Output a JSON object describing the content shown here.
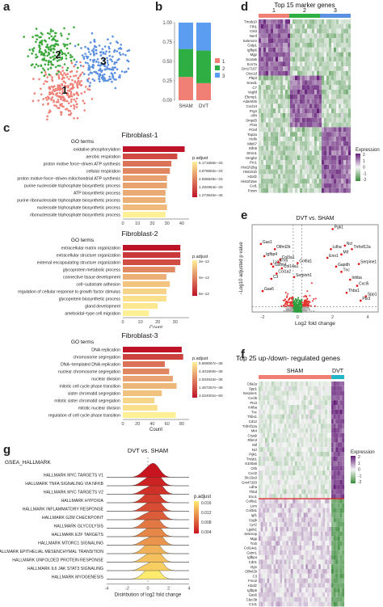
{
  "panel_labels": {
    "a": "a",
    "b": "b",
    "c": "c",
    "d": "d",
    "e": "e",
    "f": "f",
    "g": "g"
  },
  "chart_data": [
    {
      "id": "a",
      "type": "scatter",
      "title": "",
      "cluster_labels": [
        "1",
        "2",
        "3"
      ],
      "colors": [
        "#f07f76",
        "#3aa83a",
        "#5b8fe0"
      ]
    },
    {
      "id": "b",
      "type": "bar",
      "stacked": true,
      "categories": [
        "SHAM",
        "DVT"
      ],
      "series": [
        {
          "name": "1",
          "values": [
            0.3,
            0.22
          ],
          "color": "#f07f76"
        },
        {
          "name": "2",
          "values": [
            0.36,
            0.42
          ],
          "color": "#2fae43"
        },
        {
          "name": "3",
          "values": [
            0.34,
            0.36
          ],
          "color": "#5b9df0"
        }
      ],
      "ylim": [
        0,
        1
      ],
      "yticks": [
        "0.00",
        "0.25",
        "0.50",
        "0.75",
        "1.00"
      ]
    },
    {
      "id": "c1",
      "type": "bar",
      "orientation": "horizontal",
      "title": "Fibroblast-1",
      "axis_header": "GO terms",
      "xlabel": "Count",
      "xticks": [
        "0",
        "10",
        "20",
        "30",
        "40"
      ],
      "xlim": [
        0,
        45
      ],
      "categories": [
        "oxidative phosphorylation",
        "aerobic respiration",
        "proton motive force−driven ATP synthesis",
        "cellular respiration",
        "proton motive force−driven mitochondrial ATP synthesis",
        "purine nucleoside triphosphate biosynthetic process",
        "ATP biosynthetic process",
        "purine ribonucleoside triphosphate biosynthetic process",
        "nucleoside triphosphate biosynthetic process",
        "ribonucleoside triphosphate biosynthetic process"
      ],
      "values": [
        42,
        37,
        33,
        32,
        30,
        30,
        29,
        29,
        30,
        29
      ],
      "padj": [
        1.27e-45,
        1.2e-42,
        2.5e-40,
        3e-39,
        6.5e-38,
        1e-37,
        2.5e-37,
        5e-37,
        2e-36,
        1.9e-33
      ],
      "legend_title": "p.adjust",
      "legend_labels": [
        "5.171656e−33",
        "3.878692e−33",
        "2.585828e−33",
        "1.292964e−33",
        "1.273640e−45"
      ]
    },
    {
      "id": "c2",
      "type": "bar",
      "orientation": "horizontal",
      "title": "Fibroblast-2",
      "axis_header": "GO terms",
      "xlabel": "Count",
      "xticks": [
        "0",
        "10",
        "20",
        "30"
      ],
      "xlim": [
        0,
        38
      ],
      "categories": [
        "extracellular matrix organization",
        "extracellular structure organization",
        "external encapsulating structure organization",
        "glycoprotein metabolic process",
        "connective tissue development",
        "cell−substrate adhesion",
        "regulation of cellular response to growth factor stimulus",
        "glycoprotein biosynthetic process",
        "gland development",
        "ameboidal−type cell migration"
      ],
      "values": [
        33,
        33,
        33,
        30,
        25,
        27,
        25,
        25,
        20,
        15
      ],
      "padj": [
        1e-13,
        2e-13,
        3e-13,
        1e-12,
        2e-12,
        3e-12,
        4e-12,
        5e-12,
        6e-12,
        7e-12
      ],
      "legend_title": "p.adjust",
      "legend_labels": [
        "2e−12",
        "4e−12",
        "6e−12"
      ]
    },
    {
      "id": "c3",
      "type": "bar",
      "orientation": "horizontal",
      "title": "Fibroblast-3",
      "axis_header": "GO terms",
      "xlabel": "Count",
      "xticks": [
        "0",
        "20",
        "40",
        "60",
        "80"
      ],
      "xlim": [
        0,
        90
      ],
      "categories": [
        "DNA replication",
        "chromosome segregation",
        "DNA−templated DNA replication",
        "nuclear chromosome segregation",
        "nuclear division",
        "mitotic cell cycle phase transition",
        "sister chromatid segregation",
        "mitotic sister chromatid segregation",
        "mitotic nuclear division",
        "regulation of cell cycle phase transition"
      ],
      "values": [
        80,
        82,
        57,
        63,
        68,
        73,
        53,
        43,
        47,
        72
      ],
      "padj": [
        3e-60,
        1e-55,
        1e-50,
        1e-48,
        1e-45,
        1e-43,
        1e-42,
        1e-40,
        1e-39,
        5.8e-38
      ],
      "legend_title": "p.adjust",
      "legend_labels": [
        "5.869067e−38",
        "4.401800e−38",
        "2.934533e−38",
        "1.467267e−38",
        "3.024001e−60"
      ]
    },
    {
      "id": "d",
      "type": "heatmap",
      "title": "Top 15 marker genes",
      "column_groups": [
        "1",
        "2",
        "3"
      ],
      "group_colors": [
        "#f07f76",
        "#2fae43",
        "#5b8fe0"
      ],
      "genes": [
        "Tmsb10",
        "Fth1",
        "Cst3",
        "Nenf",
        "Selenom",
        "Gstp1",
        "Igfbp6",
        "Mgp",
        "Scara5",
        "Scn7a",
        "Gm17167",
        "Clec2d",
        "Pltp3",
        "Sned1",
        "C7",
        "Vegfd",
        "Efemp1",
        "Adamts5",
        "Cxcl13",
        "Prg4",
        "Aff4",
        "Smpd3",
        "Pi16",
        "Pclaf",
        "Top2a",
        "Hells",
        "Mki67",
        "Stfn9",
        "Stmn1",
        "Hmgb2",
        "Prc1",
        "Hist1h2bg",
        "Hist1h1b",
        "H2afz",
        "Hist1h2ae",
        "Col1",
        "Postn"
      ],
      "legend_title": "Expression",
      "legend_ticks": [
        "2",
        "1",
        "0",
        "-1",
        "-2"
      ]
    },
    {
      "id": "e",
      "type": "scatter",
      "title": "DVT vs. SHAM",
      "xlabel": "Log2 fold change",
      "ylabel": "−Log10 adjusted p value",
      "xticks": [
        "-2",
        "0",
        "2",
        "4"
      ],
      "xlim": [
        -2.6,
        4.6
      ],
      "labeled_genes": [
        {
          "name": "Pgk1",
          "x": 2.0,
          "y": 0.95
        },
        {
          "name": "Gas1",
          "x": -2.1,
          "y": 0.78
        },
        {
          "name": "Olfml2b",
          "x": -1.3,
          "y": 0.72
        },
        {
          "name": "Igfbp4",
          "x": -1.9,
          "y": 0.64
        },
        {
          "name": "Col3a1",
          "x": -1.0,
          "y": 0.6
        },
        {
          "name": "Lyz2",
          "x": -1.5,
          "y": 0.55
        },
        {
          "name": "Trxb",
          "x": -1.1,
          "y": 0.57
        },
        {
          "name": "Col6a1",
          "x": 0.0,
          "y": 0.56
        },
        {
          "name": "Gstm1",
          "x": -1.4,
          "y": 0.52
        },
        {
          "name": "Col14a1",
          "x": -0.9,
          "y": 0.5
        },
        {
          "name": "Col1a2",
          "x": -1.2,
          "y": 0.44
        },
        {
          "name": "C3",
          "x": -1.5,
          "y": 0.38
        },
        {
          "name": "Serpinh1",
          "x": -0.2,
          "y": 0.4
        },
        {
          "name": "Gas6",
          "x": -2.0,
          "y": 0.24
        },
        {
          "name": "Ldha",
          "x": 1.9,
          "y": 0.72
        },
        {
          "name": "Ncl",
          "x": 2.7,
          "y": 0.76
        },
        {
          "name": "Tnfrsf12a",
          "x": 3.1,
          "y": 0.72
        },
        {
          "name": "Mif",
          "x": 2.5,
          "y": 0.66
        },
        {
          "name": "Eno1",
          "x": 1.7,
          "y": 0.62
        },
        {
          "name": "Gapdh",
          "x": 2.2,
          "y": 0.52
        },
        {
          "name": "Serpine1",
          "x": 3.5,
          "y": 0.55
        },
        {
          "name": "Tnc",
          "x": 2.5,
          "y": 0.46
        },
        {
          "name": "Inhba",
          "x": 3.0,
          "y": 0.37
        },
        {
          "name": "Cxcl5",
          "x": 3.4,
          "y": 0.3
        },
        {
          "name": "Thbs1",
          "x": 2.8,
          "y": 0.22
        },
        {
          "name": "Spp1",
          "x": 3.9,
          "y": 0.18
        },
        {
          "name": "Ptx3",
          "x": 3.6,
          "y": 0.13
        }
      ]
    },
    {
      "id": "f",
      "type": "heatmap",
      "title": "Top 25 up-/down- regulated genes",
      "column_groups": [
        "SHAM",
        "DVT"
      ],
      "group_colors": [
        "#f07f76",
        "#22b5c8"
      ],
      "genes": [
        "Ctla2a",
        "Spp1",
        "Serpine1",
        "Cxcl5",
        "Ptx3",
        "Inhba",
        "Tnc",
        "Thbs1",
        "Cd12",
        "Tnfrsf12a",
        "Mt4",
        "Cryab",
        "Rbm3",
        "Mif",
        "Ncl",
        "Pgk1",
        "Tmsb1",
        "S100a6",
        "Ckb",
        "Cxcl2",
        "Slc16a3",
        "Gm47283",
        "Ldha",
        "Thbd",
        "Eno1",
        "Col6a1",
        "Lum",
        "Col3a1",
        "Igf1",
        "Cygb",
        "Lyz2",
        "Lgals1",
        "Selenop",
        "Mgp",
        "Trxb",
        "Col14a1",
        "Gstm1",
        "Igfbp4",
        "Cd01",
        "Ogn",
        "Olfml2b",
        "C3",
        "Fmo2",
        "H2afz",
        "Igfbp6",
        "Gas6",
        "Clec3b",
        "C1s1"
      ],
      "legend_title": "Expression",
      "legend_ticks": [
        "2",
        "1",
        "0",
        "-1",
        "-2"
      ]
    },
    {
      "id": "g",
      "type": "area",
      "subtype": "ridgeline",
      "title": "DVT vs. SHAM",
      "axis_header": "GSEA_HALLMARK",
      "xlabel": "Distribution of log2 fold change",
      "xticks": [
        "-4",
        "-2",
        "0",
        "2",
        "4"
      ],
      "xlim": [
        -4,
        4
      ],
      "categories": [
        "HALLMARK MYC TARGETS V1",
        "HALLMARK TNFA SIGNALING VIA NFKB",
        "HALLMARK MYC TARGETS V2",
        "HALLMARK HYPOXIA",
        "HALLMARK INFLAMMATORY RESPONSE",
        "HALLMARK G2M CHECKPOINT",
        "HALLMARK GLYCOLYSIS",
        "HALLMARK E2F TARGETS",
        "HALLMARK MTORC1 SIGNALING",
        "HALLMARK EPITHELIAL MESENCHYMAL TRANSITION",
        "HALLMARK UNFOLDED PROTEIN RESPONSE",
        "HALLMARK IL6 JAK STAT3 SIGNALING",
        "HALLMARK MYOGENESIS"
      ],
      "padj": [
        0.001,
        0.002,
        0.003,
        0.004,
        0.005,
        0.006,
        0.008,
        0.009,
        0.01,
        0.012,
        0.013,
        0.014,
        0.016
      ],
      "legend_title": "p.adjust",
      "legend_labels": [
        "0.016",
        "0.012",
        "0.008",
        "0.004"
      ]
    }
  ]
}
